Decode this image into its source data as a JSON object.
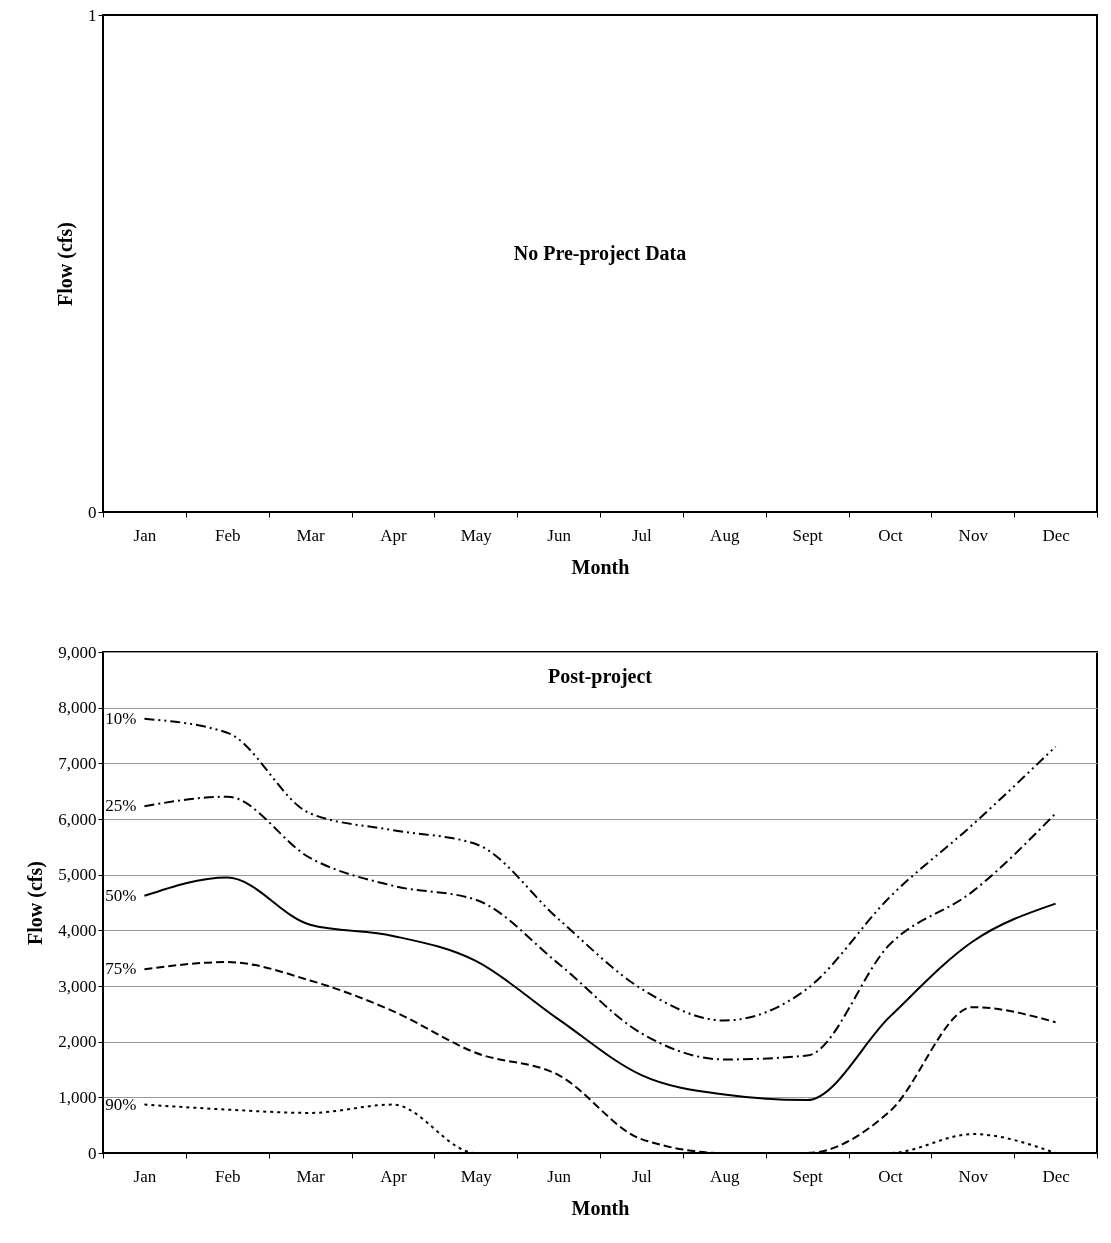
{
  "chart_data": [
    {
      "type": "line",
      "categories": [
        "Jan",
        "Feb",
        "Mar",
        "Apr",
        "May",
        "Jun",
        "Jul",
        "Aug",
        "Sept",
        "Oct",
        "Nov",
        "Dec"
      ],
      "xlabel": "Month",
      "ylabel": "Flow (cfs)",
      "ylim": [
        0,
        1
      ],
      "yticks": [
        0,
        1
      ],
      "grid": false,
      "annotations": [
        "No Pre-project Data"
      ]
    },
    {
      "type": "line",
      "title": "Post-project",
      "categories": [
        "Jan",
        "Feb",
        "Mar",
        "Apr",
        "May",
        "Jun",
        "Jul",
        "Aug",
        "Sept",
        "Oct",
        "Nov",
        "Dec"
      ],
      "xlabel": "Month",
      "ylabel": "Flow (cfs)",
      "ylim": [
        0,
        9000
      ],
      "yticks": [
        {
          "value": 0,
          "label": "0"
        },
        {
          "value": 1000,
          "label": "1,000"
        },
        {
          "value": 2000,
          "label": "2,000"
        },
        {
          "value": 3000,
          "label": "3,000"
        },
        {
          "value": 4000,
          "label": "4,000"
        },
        {
          "value": 5000,
          "label": "5,000"
        },
        {
          "value": 6000,
          "label": "6,000"
        },
        {
          "value": 7000,
          "label": "7,000"
        },
        {
          "value": 8000,
          "label": "8,000"
        },
        {
          "value": 9000,
          "label": "9,000"
        }
      ],
      "grid": "y",
      "series": [
        {
          "name": "10%",
          "color": "#000000",
          "line_style": "dashdotdot",
          "values": [
            7800,
            7550,
            6100,
            5800,
            5550,
            4200,
            2950,
            2380,
            2950,
            4600,
            5900,
            7300
          ]
        },
        {
          "name": "25%",
          "color": "#000000",
          "line_style": "dashdot",
          "values": [
            6230,
            6400,
            5300,
            4800,
            4550,
            3400,
            2150,
            1680,
            1750,
            3750,
            4700,
            6100
          ]
        },
        {
          "name": "50%",
          "color": "#000000",
          "line_style": "solid",
          "values": [
            4620,
            4950,
            4100,
            3900,
            3450,
            2400,
            1400,
            1050,
            950,
            2450,
            3800,
            4480
          ]
        },
        {
          "name": "75%",
          "color": "#000000",
          "line_style": "dashed",
          "values": [
            3300,
            3430,
            3100,
            2550,
            1800,
            1400,
            250,
            0,
            0,
            750,
            2620,
            2350
          ]
        },
        {
          "name": "90%",
          "color": "#000000",
          "line_style": "dotted",
          "values": [
            870,
            780,
            720,
            870,
            0,
            0,
            0,
            0,
            0,
            0,
            340,
            0
          ]
        }
      ]
    }
  ]
}
